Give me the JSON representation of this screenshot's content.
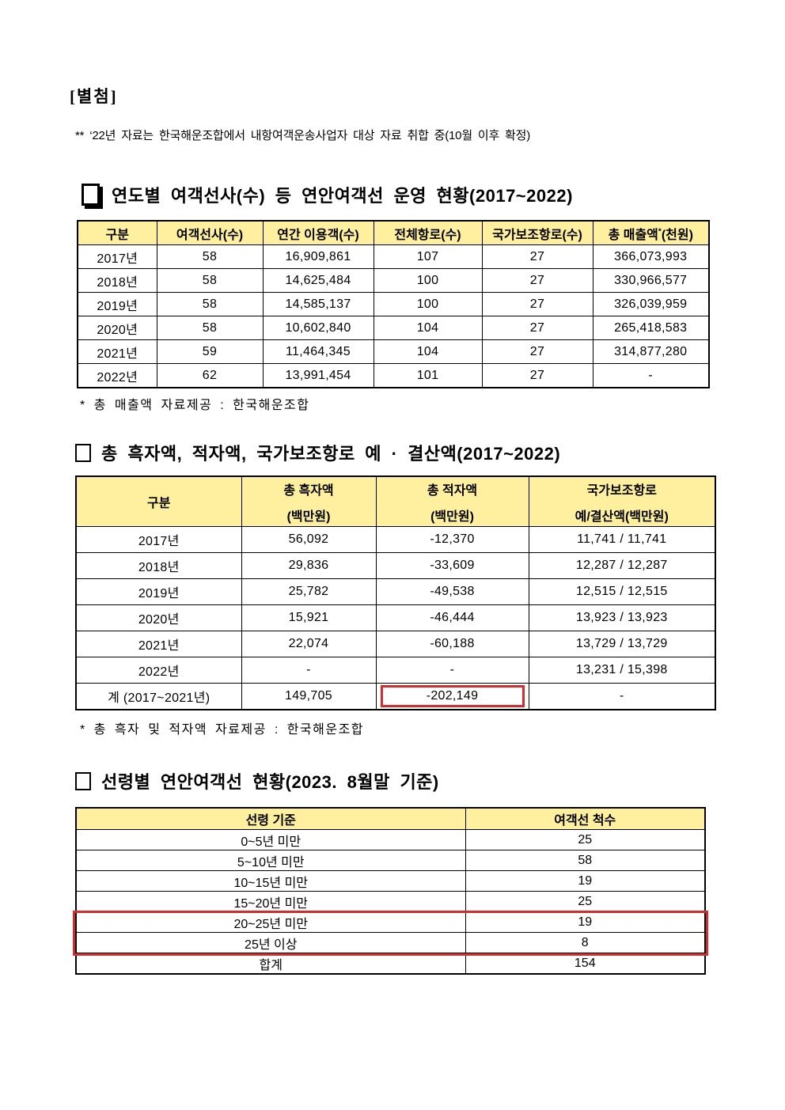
{
  "document": {
    "attachment_label": "[별첨]",
    "note": "** ‘22년 자료는 한국해운조합에서 내항여객운송사업자 대상 자료 취합 중(10월 이후 확정)"
  },
  "colors": {
    "table_header_bg": "#FFF0A0",
    "highlight_red": "#D02E2E"
  },
  "section1": {
    "title": "연도별 여객선사(수) 등 연안여객선 운영 현황(2017~2022)",
    "table": {
      "headers": [
        "구분",
        "여객선사(수)",
        "연간 이용객(수)",
        "전체항로(수)",
        "국가보조항로(수)"
      ],
      "revenue_header": {
        "main": "총 매출액",
        "sup": "*",
        "unit": "(천원)"
      },
      "rows": [
        [
          "2017년",
          "58",
          "16,909,861",
          "107",
          "27",
          "366,073,993"
        ],
        [
          "2018년",
          "58",
          "14,625,484",
          "100",
          "27",
          "330,966,577"
        ],
        [
          "2019년",
          "58",
          "14,585,137",
          "100",
          "27",
          "326,039,959"
        ],
        [
          "2020년",
          "58",
          "10,602,840",
          "104",
          "27",
          "265,418,583"
        ],
        [
          "2021년",
          "59",
          "11,464,345",
          "104",
          "27",
          "314,877,280"
        ],
        [
          "2022년",
          "62",
          "13,991,454",
          "101",
          "27",
          "-"
        ]
      ]
    },
    "footnote": "* 총 매출액 자료제공 : 한국해운조합"
  },
  "section2": {
    "title": "총 흑자액, 적자액, 국가보조항로 예 · 결산액(2017~2022)",
    "table": {
      "col1_header": "구분",
      "headers2": [
        {
          "line1": "총 흑자액",
          "line2": "(백만원)"
        },
        {
          "line1": "총 적자액",
          "line2": "(백만원)"
        },
        {
          "line1": "국가보조항로",
          "line2": "예/결산액(백만원)"
        }
      ],
      "rows": [
        [
          "2017년",
          "56,092",
          "-12,370",
          "11,741 / 11,741"
        ],
        [
          "2018년",
          "29,836",
          "-33,609",
          "12,287 / 12,287"
        ],
        [
          "2019년",
          "25,782",
          "-49,538",
          "12,515 / 12,515"
        ],
        [
          "2020년",
          "15,921",
          "-46,444",
          "13,923 / 13,923"
        ],
        [
          "2021년",
          "22,074",
          "-60,188",
          "13,729 / 13,729"
        ],
        [
          "2022년",
          "-",
          "-",
          "13,231 / 15,398"
        ],
        [
          "계 (2017~2021년)",
          "149,705",
          "-202,149",
          "-"
        ]
      ]
    },
    "footnote": "* 총 흑자 및 적자액 자료제공 : 한국해운조합"
  },
  "section3": {
    "title": "선령별 연안여객선 현황(2023. 8월말 기준)",
    "table": {
      "headers": [
        "선령 기준",
        "여객선 척수"
      ],
      "rows": [
        [
          "0~5년 미만",
          "25"
        ],
        [
          "5~10년 미만",
          "58"
        ],
        [
          "10~15년 미만",
          "19"
        ],
        [
          "15~20년 미만",
          "25"
        ],
        [
          "20~25년 미만",
          "19"
        ],
        [
          "25년 이상",
          "8"
        ],
        [
          "합계",
          "154"
        ]
      ]
    }
  }
}
